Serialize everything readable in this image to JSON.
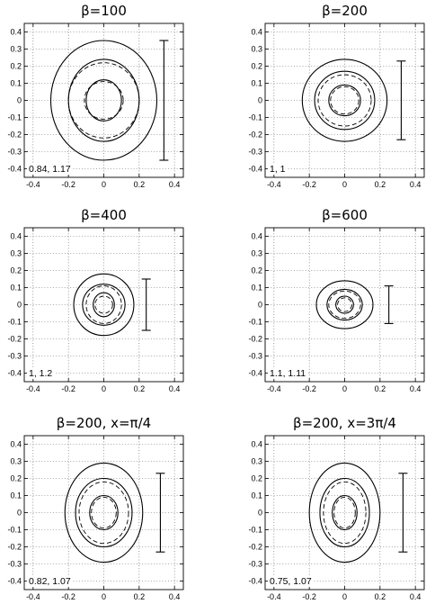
{
  "chart_data": [
    {
      "type": "line",
      "title": "β=100",
      "annotation": "0.84, 1.17",
      "xlim": [
        -0.45,
        0.45
      ],
      "ylim": [
        -0.45,
        0.45
      ],
      "xticks": [
        "-0.4",
        "-0.2",
        "0",
        "0.2",
        "0.4"
      ],
      "yticks": [
        "0.4",
        "0.3",
        "0.2",
        "0.1",
        "0",
        "-0.1",
        "-0.2",
        "-0.3",
        "-0.4"
      ],
      "grid": true,
      "solid_ellipses": [
        {
          "rx": 0.3,
          "ry": 0.35
        },
        {
          "rx": 0.2,
          "ry": 0.24
        },
        {
          "rx": 0.1,
          "ry": 0.12
        }
      ],
      "dashed_ellipses": [
        {
          "rx": 0.2,
          "ry": 0.22
        },
        {
          "rx": 0.11,
          "ry": 0.11
        }
      ],
      "error_bar": {
        "x": 0.34,
        "y_low": -0.35,
        "y_high": 0.35
      }
    },
    {
      "type": "line",
      "title": "β=200",
      "annotation": "1, 1",
      "xlim": [
        -0.45,
        0.45
      ],
      "ylim": [
        -0.45,
        0.45
      ],
      "xticks": [
        "-0.4",
        "-0.2",
        "0",
        "0.2",
        "0.4"
      ],
      "yticks": [
        "0.4",
        "0.3",
        "0.2",
        "0.1",
        "0",
        "-0.1",
        "-0.2",
        "-0.3",
        "-0.4"
      ],
      "grid": true,
      "solid_ellipses": [
        {
          "rx": 0.24,
          "ry": 0.24
        },
        {
          "rx": 0.17,
          "ry": 0.17
        },
        {
          "rx": 0.09,
          "ry": 0.09
        }
      ],
      "dashed_ellipses": [
        {
          "rx": 0.15,
          "ry": 0.15
        },
        {
          "rx": 0.08,
          "ry": 0.08
        }
      ],
      "error_bar": {
        "x": 0.32,
        "y_low": -0.23,
        "y_high": 0.23
      }
    },
    {
      "type": "line",
      "title": "β=400",
      "annotation": "1, 1.2",
      "xlim": [
        -0.45,
        0.45
      ],
      "ylim": [
        -0.45,
        0.45
      ],
      "xticks": [
        "-0.4",
        "-0.2",
        "0",
        "0.2",
        "0.4"
      ],
      "yticks": [
        "0.4",
        "0.3",
        "0.2",
        "0.1",
        "0",
        "-0.1",
        "-0.2",
        "-0.3",
        "-0.4"
      ],
      "grid": true,
      "solid_ellipses": [
        {
          "rx": 0.17,
          "ry": 0.18
        },
        {
          "rx": 0.12,
          "ry": 0.12
        },
        {
          "rx": 0.06,
          "ry": 0.07
        }
      ],
      "dashed_ellipses": [
        {
          "rx": 0.1,
          "ry": 0.11
        },
        {
          "rx": 0.05,
          "ry": 0.05
        }
      ],
      "error_bar": {
        "x": 0.24,
        "y_low": -0.15,
        "y_high": 0.15
      }
    },
    {
      "type": "line",
      "title": "β=600",
      "annotation": "1.1, 1.11",
      "xlim": [
        -0.45,
        0.45
      ],
      "ylim": [
        -0.45,
        0.45
      ],
      "xticks": [
        "-0.4",
        "-0.2",
        "0",
        "0.2",
        "0.4"
      ],
      "yticks": [
        "0.4",
        "0.3",
        "0.2",
        "0.1",
        "0",
        "-0.1",
        "-0.2",
        "-0.3",
        "-0.4"
      ],
      "grid": true,
      "solid_ellipses": [
        {
          "rx": 0.16,
          "ry": 0.14
        },
        {
          "rx": 0.1,
          "ry": 0.09
        },
        {
          "rx": 0.05,
          "ry": 0.05
        }
      ],
      "dashed_ellipses": [
        {
          "rx": 0.09,
          "ry": 0.08
        },
        {
          "rx": 0.04,
          "ry": 0.04
        }
      ],
      "error_bar": {
        "x": 0.25,
        "y_low": -0.11,
        "y_high": 0.11
      }
    },
    {
      "type": "line",
      "title": "β=200, x=π/4",
      "annotation": "0.82, 1.07",
      "xlim": [
        -0.45,
        0.45
      ],
      "ylim": [
        -0.45,
        0.45
      ],
      "xticks": [
        "-0.4",
        "-0.2",
        "0",
        "0.2",
        "0.4"
      ],
      "yticks": [
        "0.4",
        "0.3",
        "0.2",
        "0.1",
        "0",
        "-0.1",
        "-0.2",
        "-0.3",
        "-0.4"
      ],
      "grid": true,
      "solid_ellipses": [
        {
          "rx": 0.22,
          "ry": 0.29
        },
        {
          "rx": 0.16,
          "ry": 0.2
        },
        {
          "rx": 0.08,
          "ry": 0.1
        }
      ],
      "dashed_ellipses": [
        {
          "rx": 0.14,
          "ry": 0.18
        },
        {
          "rx": 0.07,
          "ry": 0.09
        }
      ],
      "error_bar": {
        "x": 0.32,
        "y_low": -0.23,
        "y_high": 0.23
      }
    },
    {
      "type": "line",
      "title": "β=200, x=3π/4",
      "annotation": "0.75, 1.07",
      "xlim": [
        -0.45,
        0.45
      ],
      "ylim": [
        -0.45,
        0.45
      ],
      "xticks": [
        "-0.4",
        "-0.2",
        "0",
        "0.2",
        "0.4"
      ],
      "yticks": [
        "0.4",
        "0.3",
        "0.2",
        "0.1",
        "0",
        "-0.1",
        "-0.2",
        "-0.3",
        "-0.4"
      ],
      "grid": true,
      "solid_ellipses": [
        {
          "rx": 0.2,
          "ry": 0.29
        },
        {
          "rx": 0.14,
          "ry": 0.2
        },
        {
          "rx": 0.07,
          "ry": 0.1
        }
      ],
      "dashed_ellipses": [
        {
          "rx": 0.12,
          "ry": 0.18
        },
        {
          "rx": 0.06,
          "ry": 0.09
        }
      ],
      "error_bar": {
        "x": 0.33,
        "y_low": -0.23,
        "y_high": 0.23
      }
    }
  ]
}
